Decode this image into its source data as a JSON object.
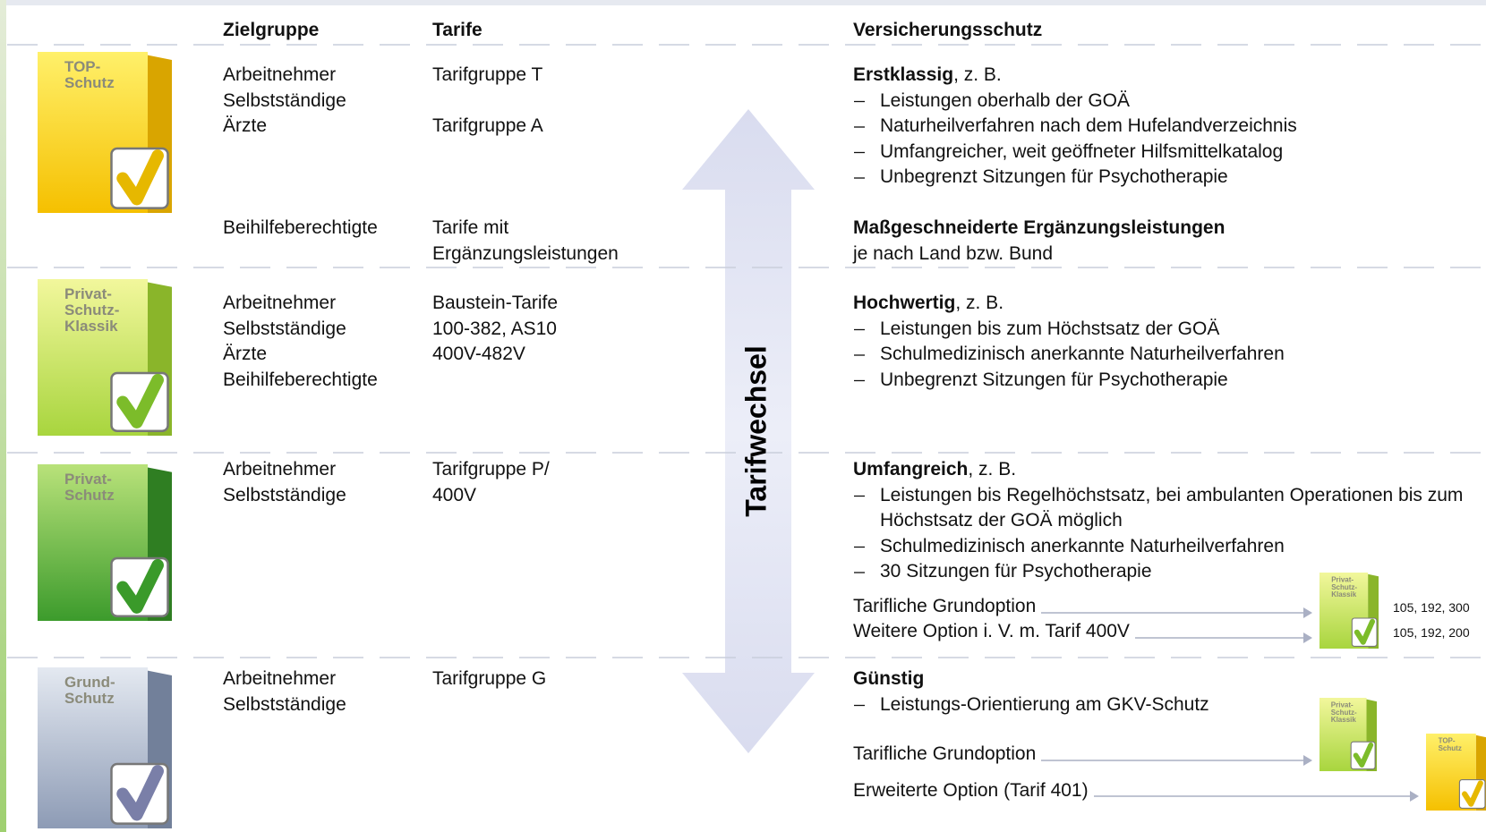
{
  "header": {
    "zielgruppe": "Zielgruppe",
    "tarife": "Tarife",
    "schutz": "Versicherungsschutz"
  },
  "arrow_label": "Tarifwechsel",
  "rows": [
    {
      "product": [
        "TOP-",
        "Schutz"
      ],
      "groups": [
        {
          "zielgruppe": [
            "Arbeitnehmer",
            "Selbstständige"
          ],
          "tarife": [
            "Tarifgruppe T"
          ]
        },
        {
          "zielgruppe": [
            "Ärzte"
          ],
          "tarife": [
            "Tarifgruppe A"
          ]
        }
      ],
      "title": "Erstklassig",
      "title_suffix": ", z. B.",
      "bullets": [
        "Leistungen oberhalb der GOÄ",
        "Naturheilverfahren nach dem Hufelandverzeichnis",
        "Umfangreicher, weit geöffneter Hilfsmittelkatalog",
        "Unbegrenzt Sitzungen für Psychotherapie"
      ]
    },
    {
      "groups": [
        {
          "zielgruppe": [
            "Beihilfeberechtigte"
          ],
          "tarife": [
            "Tarife mit",
            "Ergänzungsleistungen"
          ]
        }
      ],
      "title": "Maßgeschneiderte Ergänzungsleistungen",
      "text": "je nach Land bzw. Bund"
    },
    {
      "product": [
        "Privat-",
        "Schutz-",
        "Klassik"
      ],
      "groups": [
        {
          "zielgruppe": [
            "Arbeitnehmer",
            "Selbstständige",
            "Ärzte",
            "Beihilfeberechtigte"
          ],
          "tarife": [
            "Baustein-Tarife",
            "100-382, AS10",
            "400V-482V"
          ]
        }
      ],
      "title": "Hochwertig",
      "title_suffix": ", z. B.",
      "bullets": [
        "Leistungen bis zum Höchstsatz der GOÄ",
        "Schulmedizinisch anerkannte Naturheilverfahren",
        "Unbegrenzt Sitzungen für Psychotherapie"
      ]
    },
    {
      "product": [
        "Privat-",
        "Schutz"
      ],
      "groups": [
        {
          "zielgruppe": [
            "Arbeitnehmer",
            "Selbstständige"
          ],
          "tarife": [
            "Tarifgruppe P/",
            "400V"
          ]
        }
      ],
      "title": "Umfangreich",
      "title_suffix": ", z. B.",
      "bullets": [
        "Leistungen bis Regelhöchstsatz, bei ambulanten Operationen bis zum Höchstsatz der GOÄ möglich",
        "Schulmedizinisch anerkannte Naturheilverfahren",
        "30 Sitzungen für Psychotherapie"
      ],
      "options": [
        {
          "label": "Tarifliche Grundoption",
          "numbers": "105, 192, 300"
        },
        {
          "label": "Weitere Option i. V. m. Tarif 400V",
          "numbers": "105, 192, 200"
        }
      ]
    },
    {
      "product": [
        "Grund-",
        "Schutz"
      ],
      "groups": [
        {
          "zielgruppe": [
            "Arbeitnehmer",
            "Selbstständige"
          ],
          "tarife": [
            "Tarifgruppe G"
          ]
        }
      ],
      "title": "Günstig",
      "bullets": [
        "Leistungs-Orientierung am GKV-Schutz"
      ],
      "options": [
        {
          "label": "Tarifliche Grundoption"
        },
        {
          "label": "Erweiterte Option (Tarif 401)"
        }
      ]
    }
  ]
}
